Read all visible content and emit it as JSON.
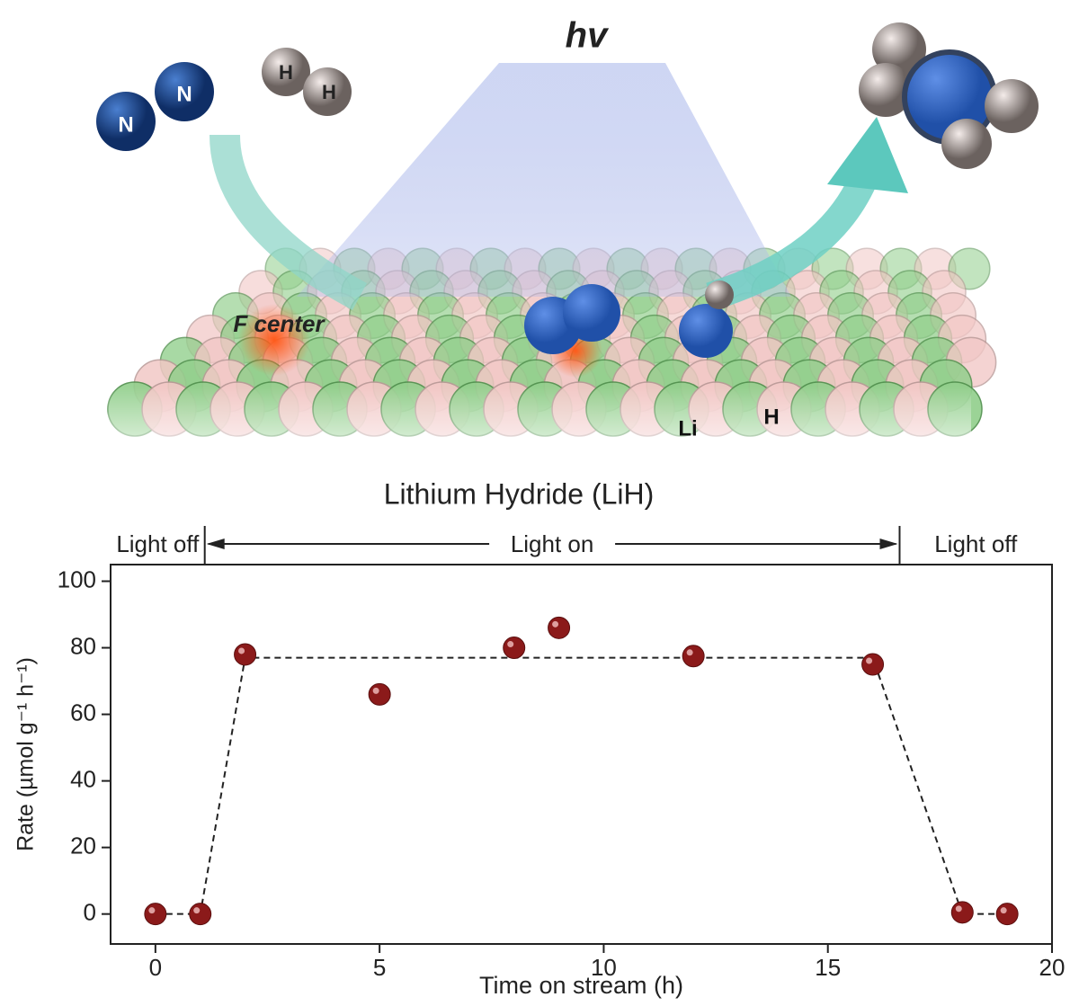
{
  "illustration": {
    "light_label": "hv",
    "n2_atoms": [
      "N",
      "N"
    ],
    "h2_atoms": [
      "H",
      "H"
    ],
    "f_center": "F center",
    "li_label": "Li",
    "h_label": "H",
    "caption": "Lithium Hydride (LiH)"
  },
  "chart_data": {
    "type": "scatter",
    "x": [
      0,
      1,
      2,
      5,
      8,
      9,
      12,
      16,
      18,
      19
    ],
    "values": [
      0,
      0,
      78,
      66,
      80,
      86,
      77.5,
      75,
      0.5,
      0
    ],
    "color": "#8b1a1a",
    "trend": {
      "x": [
        0,
        1,
        2,
        16,
        18,
        19
      ],
      "values": [
        0,
        0,
        77,
        77,
        0,
        0
      ],
      "color": "#222222",
      "band_color": "#6f86ff"
    },
    "xlabel": "Time on stream (h)",
    "ylabel": "Rate (µmol g⁻¹ h⁻¹)",
    "xlim": [
      -1,
      20
    ],
    "ylim": [
      -9,
      105
    ],
    "xticks": [
      0,
      5,
      10,
      15,
      20
    ],
    "yticks": [
      0,
      20,
      40,
      60,
      80,
      100
    ],
    "light_boundaries": [
      1.1,
      16.6
    ],
    "regions": [
      "Light off",
      "Light on",
      "Light off"
    ]
  }
}
